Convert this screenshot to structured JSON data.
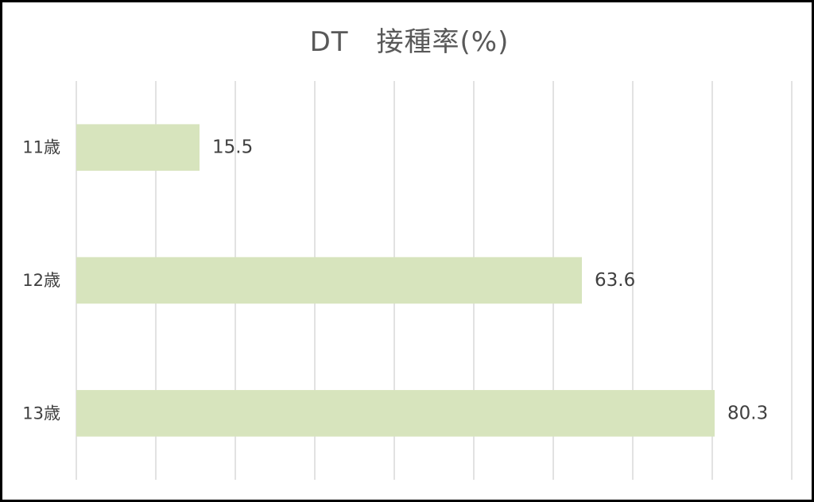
{
  "chart_data": {
    "type": "bar",
    "orientation": "horizontal",
    "title": "DT　接種率(%)",
    "categories": [
      "11歳",
      "12歳",
      "13歳"
    ],
    "series": [
      {
        "values": [
          15.5,
          63.6,
          80.3
        ]
      }
    ],
    "data_labels": [
      "15.5",
      "63.6",
      "80.3"
    ],
    "xlim": [
      0,
      90
    ],
    "grid": true,
    "legend": "none",
    "colors": {
      "bar": "#d7e4bd",
      "grid": "#d9d9d9",
      "text": "#404040",
      "title": "#595959",
      "border": "#000000"
    }
  }
}
